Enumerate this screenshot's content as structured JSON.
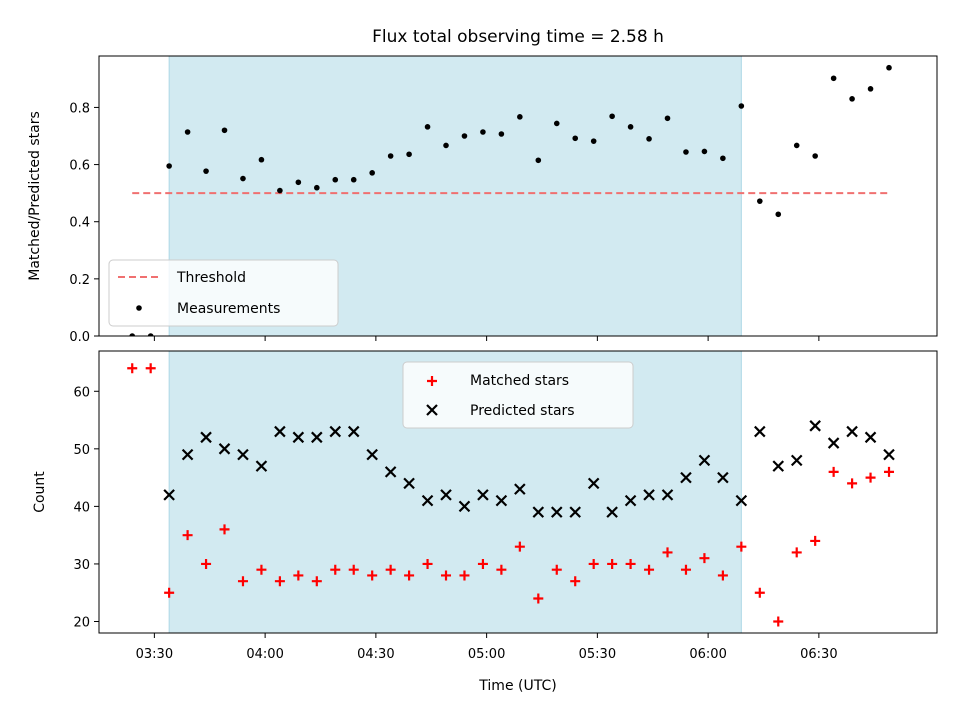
{
  "chart_data": [
    {
      "type": "scatter",
      "title": "Flux total observing time = 2.58 h",
      "xlabel": "",
      "ylabel": "Matched/Predicted stars",
      "ylim": [
        0.0,
        0.98
      ],
      "yticks": [
        0.0,
        0.2,
        0.4,
        0.6,
        0.8
      ],
      "ytick_labels": [
        "0.0",
        "0.2",
        "0.4",
        "0.6",
        "0.8"
      ],
      "xlim": [
        "03:15",
        "07:02"
      ],
      "xticks": [
        "03:30",
        "04:00",
        "04:30",
        "05:00",
        "05:30",
        "06:00",
        "06:30"
      ],
      "shaded_span": [
        "03:34",
        "06:09"
      ],
      "shaded_color": "#add8e6",
      "threshold": {
        "name": "Threshold",
        "value": 0.5,
        "x_range": [
          "03:24",
          "06:49"
        ],
        "color": "#f07070",
        "style": "dashed"
      },
      "series": [
        {
          "name": "Measurements",
          "marker": "dot",
          "color": "#000000",
          "x": [
            "03:24",
            "03:29",
            "03:34",
            "03:39",
            "03:44",
            "03:49",
            "03:54",
            "03:59",
            "04:04",
            "04:09",
            "04:14",
            "04:19",
            "04:24",
            "04:29",
            "04:34",
            "04:39",
            "04:44",
            "04:49",
            "04:54",
            "04:59",
            "05:04",
            "05:09",
            "05:14",
            "05:19",
            "05:24",
            "05:29",
            "05:34",
            "05:39",
            "05:44",
            "05:49",
            "05:54",
            "05:59",
            "06:04",
            "06:09",
            "06:14",
            "06:19",
            "06:24",
            "06:29",
            "06:34",
            "06:39",
            "06:44",
            "06:49"
          ],
          "y": [
            0.0,
            0.0,
            0.595,
            0.714,
            0.577,
            0.72,
            0.551,
            0.617,
            0.509,
            0.538,
            0.519,
            0.547,
            0.547,
            0.571,
            0.63,
            0.636,
            0.732,
            0.667,
            0.7,
            0.714,
            0.707,
            0.767,
            0.615,
            0.744,
            0.692,
            0.682,
            0.769,
            0.732,
            0.69,
            0.762,
            0.644,
            0.646,
            0.622,
            0.805,
            0.472,
            0.426,
            0.667,
            0.63,
            0.902,
            0.83,
            0.865,
            0.939
          ]
        }
      ],
      "legend": {
        "position": "lower-left",
        "entries": [
          "Threshold",
          "Measurements"
        ]
      }
    },
    {
      "type": "scatter",
      "title": "",
      "xlabel": "Time (UTC)",
      "ylabel": "Count",
      "ylim": [
        18,
        67
      ],
      "yticks": [
        20,
        30,
        40,
        50,
        60
      ],
      "ytick_labels": [
        "20",
        "30",
        "40",
        "50",
        "60"
      ],
      "xlim": [
        "03:15",
        "07:02"
      ],
      "xticks": [
        "03:30",
        "04:00",
        "04:30",
        "05:00",
        "05:30",
        "06:00",
        "06:30"
      ],
      "xtick_labels": [
        "03:30",
        "04:00",
        "04:30",
        "05:00",
        "05:30",
        "06:00",
        "06:30"
      ],
      "shaded_span": [
        "03:34",
        "06:09"
      ],
      "shaded_color": "#add8e6",
      "series": [
        {
          "name": "Matched stars",
          "marker": "plus",
          "color": "#ff0000",
          "x": [
            "03:24",
            "03:29",
            "03:34",
            "03:39",
            "03:44",
            "03:49",
            "03:54",
            "03:59",
            "04:04",
            "04:09",
            "04:14",
            "04:19",
            "04:24",
            "04:29",
            "04:34",
            "04:39",
            "04:44",
            "04:49",
            "04:54",
            "04:59",
            "05:04",
            "05:09",
            "05:14",
            "05:19",
            "05:24",
            "05:29",
            "05:34",
            "05:39",
            "05:44",
            "05:49",
            "05:54",
            "05:59",
            "06:04",
            "06:09",
            "06:14",
            "06:19",
            "06:24",
            "06:29",
            "06:34",
            "06:39",
            "06:44",
            "06:49"
          ],
          "y": [
            64,
            64,
            25,
            35,
            30,
            36,
            27,
            29,
            27,
            28,
            27,
            29,
            29,
            28,
            29,
            28,
            30,
            28,
            28,
            30,
            29,
            33,
            24,
            29,
            27,
            30,
            30,
            30,
            29,
            32,
            29,
            31,
            28,
            33,
            25,
            20,
            32,
            34,
            46,
            44,
            45,
            46
          ]
        },
        {
          "name": "Predicted stars",
          "marker": "x",
          "color": "#000000",
          "x": [
            "03:34",
            "03:39",
            "03:44",
            "03:49",
            "03:54",
            "03:59",
            "04:04",
            "04:09",
            "04:14",
            "04:19",
            "04:24",
            "04:29",
            "04:34",
            "04:39",
            "04:44",
            "04:49",
            "04:54",
            "04:59",
            "05:04",
            "05:09",
            "05:14",
            "05:19",
            "05:24",
            "05:29",
            "05:34",
            "05:39",
            "05:44",
            "05:49",
            "05:54",
            "05:59",
            "06:04",
            "06:09",
            "06:14",
            "06:19",
            "06:24",
            "06:29",
            "06:34",
            "06:39",
            "06:44",
            "06:49"
          ],
          "y": [
            42,
            49,
            52,
            50,
            49,
            47,
            53,
            52,
            52,
            53,
            53,
            49,
            46,
            44,
            41,
            42,
            40,
            42,
            41,
            43,
            39,
            39,
            39,
            44,
            39,
            41,
            42,
            42,
            45,
            48,
            45,
            41,
            53,
            47,
            48,
            54,
            51,
            53,
            52,
            49
          ]
        }
      ],
      "legend": {
        "position": "upper-center",
        "entries": [
          "Matched stars",
          "Predicted stars"
        ]
      }
    }
  ]
}
